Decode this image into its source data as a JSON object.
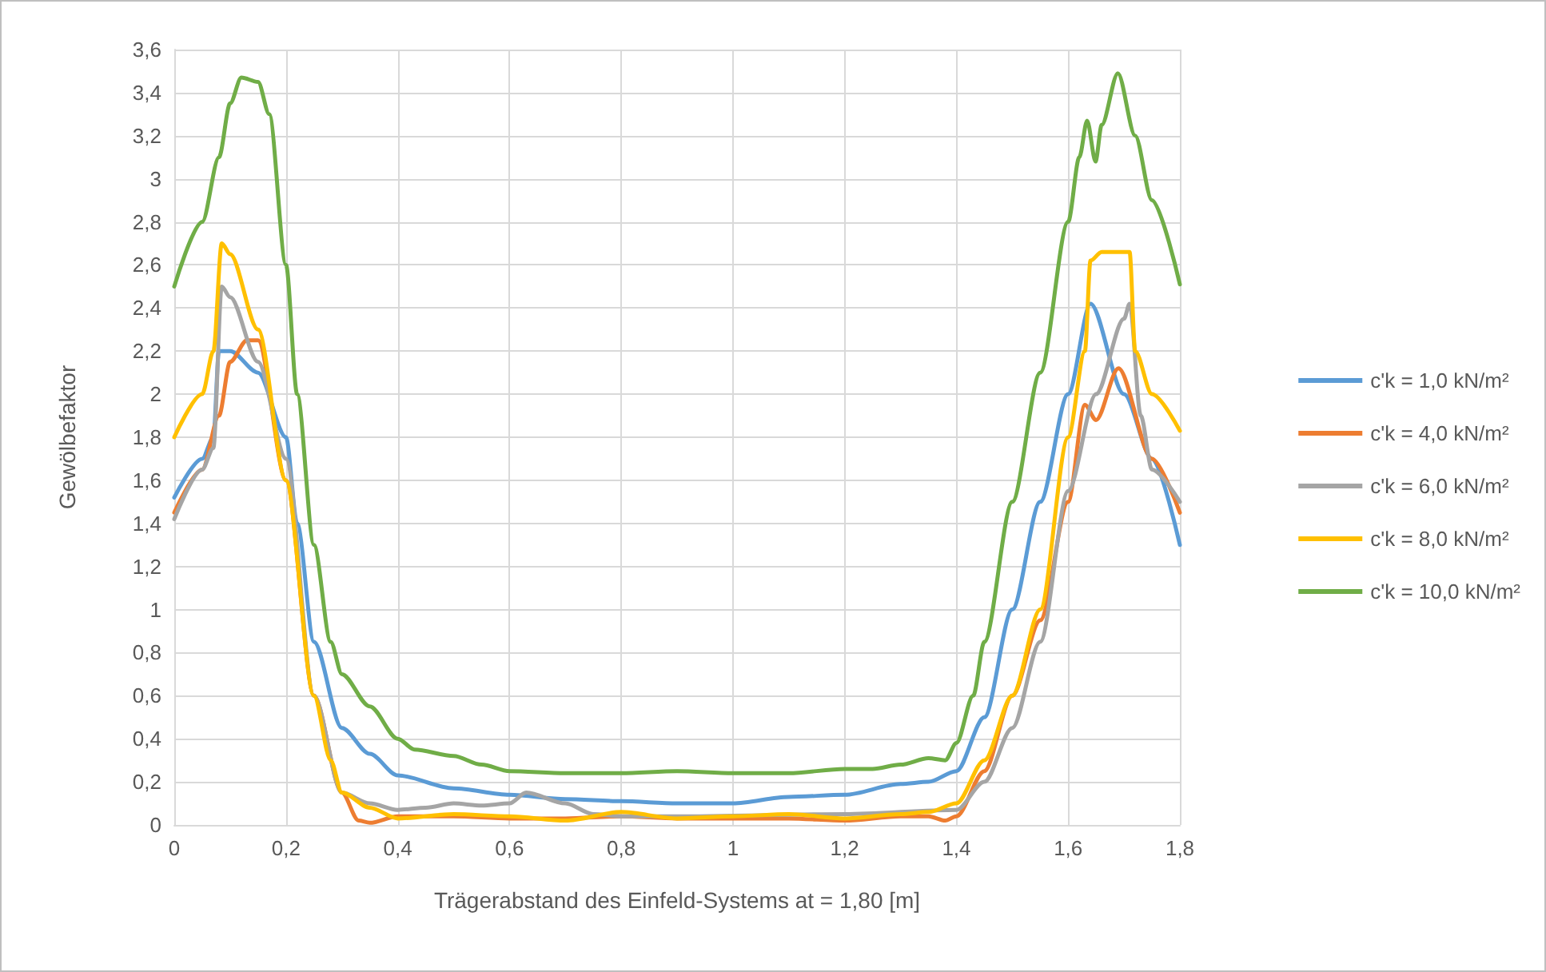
{
  "chart_data": {
    "type": "line",
    "xlabel": "Trägerabstand des Einfeld-Systems at = 1,80 [m]",
    "ylabel": "Gewölbefaktor",
    "xlim": [
      0,
      1.8
    ],
    "ylim": [
      0,
      3.6
    ],
    "xticks": [
      0,
      {
        "value": 0.2,
        "label": "0,2"
      },
      {
        "value": 0.4,
        "label": "0,4"
      },
      {
        "value": 0.6,
        "label": "0,6"
      },
      {
        "value": 0.8,
        "label": "0,8"
      },
      1,
      {
        "value": 1.2,
        "label": "1,2"
      },
      {
        "value": 1.4,
        "label": "1,4"
      },
      {
        "value": 1.6,
        "label": "1,6"
      },
      {
        "value": 1.8,
        "label": "1,8"
      }
    ],
    "yticks": [
      0,
      {
        "value": 0.2,
        "label": "0,2"
      },
      {
        "value": 0.4,
        "label": "0,4"
      },
      {
        "value": 0.6,
        "label": "0,6"
      },
      {
        "value": 0.8,
        "label": "0,8"
      },
      1,
      {
        "value": 1.2,
        "label": "1,2"
      },
      {
        "value": 1.4,
        "label": "1,4"
      },
      {
        "value": 1.6,
        "label": "1,6"
      },
      {
        "value": 1.8,
        "label": "1,8"
      },
      2,
      {
        "value": 2.2,
        "label": "2,2"
      },
      {
        "value": 2.4,
        "label": "2,4"
      },
      {
        "value": 2.6,
        "label": "2,6"
      },
      {
        "value": 2.8,
        "label": "2,8"
      },
      3,
      {
        "value": 3.2,
        "label": "3,2"
      },
      {
        "value": 3.4,
        "label": "3,4"
      },
      {
        "value": 3.6,
        "label": "3,6"
      }
    ],
    "grid": true,
    "legend": "right",
    "marker": "none",
    "line_style": "solid",
    "series": [
      {
        "name": "c'k = 1,0 kN/m²",
        "color": "#5b9bd5",
        "x": [
          0,
          0.05,
          0.07,
          0.08,
          0.1,
          0.15,
          0.2,
          0.22,
          0.25,
          0.3,
          0.35,
          0.4,
          0.5,
          0.6,
          0.7,
          0.8,
          0.9,
          1.0,
          1.1,
          1.2,
          1.3,
          1.35,
          1.4,
          1.45,
          1.5,
          1.55,
          1.6,
          1.64,
          1.7,
          1.75,
          1.8
        ],
        "values": [
          1.52,
          1.7,
          1.8,
          2.2,
          2.2,
          2.1,
          1.8,
          1.4,
          0.85,
          0.45,
          0.33,
          0.23,
          0.17,
          0.14,
          0.12,
          0.11,
          0.1,
          0.1,
          0.13,
          0.14,
          0.19,
          0.2,
          0.25,
          0.5,
          1.0,
          1.5,
          2.0,
          2.42,
          2.0,
          1.7,
          1.3
        ]
      },
      {
        "name": "c'k = 4,0 kN/m²",
        "color": "#ed7d31",
        "x": [
          0,
          0.05,
          0.08,
          0.1,
          0.13,
          0.15,
          0.2,
          0.25,
          0.3,
          0.33,
          0.35,
          0.4,
          0.5,
          0.6,
          0.7,
          0.8,
          0.9,
          1.0,
          1.1,
          1.2,
          1.3,
          1.35,
          1.38,
          1.4,
          1.45,
          1.5,
          1.55,
          1.6,
          1.63,
          1.65,
          1.69,
          1.75,
          1.8
        ],
        "values": [
          1.45,
          1.65,
          1.9,
          2.15,
          2.25,
          2.25,
          1.6,
          0.6,
          0.15,
          0.02,
          0.01,
          0.04,
          0.04,
          0.03,
          0.03,
          0.04,
          0.03,
          0.03,
          0.03,
          0.02,
          0.04,
          0.04,
          0.02,
          0.04,
          0.25,
          0.6,
          0.95,
          1.5,
          1.95,
          1.88,
          2.12,
          1.7,
          1.45
        ]
      },
      {
        "name": "c'k = 6,0 kN/m²",
        "color": "#a5a5a5",
        "x": [
          0,
          0.05,
          0.07,
          0.085,
          0.1,
          0.15,
          0.2,
          0.25,
          0.3,
          0.35,
          0.4,
          0.45,
          0.5,
          0.55,
          0.6,
          0.63,
          0.7,
          0.75,
          0.8,
          0.9,
          1.0,
          1.1,
          1.2,
          1.3,
          1.4,
          1.45,
          1.5,
          1.55,
          1.6,
          1.65,
          1.7,
          1.71,
          1.73,
          1.75,
          1.8
        ],
        "values": [
          1.42,
          1.65,
          1.75,
          2.5,
          2.45,
          2.15,
          1.7,
          0.6,
          0.15,
          0.1,
          0.07,
          0.08,
          0.1,
          0.09,
          0.1,
          0.15,
          0.1,
          0.05,
          0.04,
          0.04,
          null,
          null,
          0.05,
          null,
          0.07,
          0.2,
          0.45,
          0.85,
          1.55,
          2.0,
          2.35,
          2.42,
          1.9,
          1.65,
          1.5
        ]
      },
      {
        "name": "c'k = 8,0 kN/m²",
        "color": "#ffc000",
        "x": [
          0,
          0.05,
          0.07,
          0.085,
          0.1,
          0.15,
          0.2,
          0.25,
          0.28,
          0.3,
          0.35,
          0.4,
          0.5,
          0.6,
          0.7,
          0.8,
          0.9,
          1.0,
          1.1,
          1.2,
          1.3,
          1.35,
          1.4,
          1.45,
          1.5,
          1.55,
          1.6,
          1.63,
          1.64,
          1.66,
          1.71,
          1.72,
          1.75,
          1.8
        ],
        "values": [
          1.8,
          2.0,
          2.2,
          2.7,
          2.65,
          2.3,
          1.6,
          0.6,
          0.3,
          0.15,
          0.08,
          0.03,
          0.05,
          0.04,
          0.02,
          0.06,
          0.03,
          0.04,
          0.05,
          0.03,
          0.05,
          0.06,
          0.1,
          0.3,
          0.6,
          1.0,
          1.8,
          2.2,
          2.62,
          2.66,
          2.66,
          2.2,
          2.0,
          1.83
        ]
      },
      {
        "name": "c'k = 10,0 kN/m²",
        "color": "#70ad47",
        "x": [
          0,
          0.05,
          0.08,
          0.1,
          0.12,
          0.15,
          0.17,
          0.2,
          0.22,
          0.25,
          0.28,
          0.3,
          0.35,
          0.4,
          0.43,
          0.5,
          0.55,
          0.6,
          0.7,
          0.8,
          0.9,
          1.0,
          1.1,
          1.2,
          1.25,
          1.3,
          1.35,
          1.38,
          1.4,
          1.43,
          1.45,
          1.5,
          1.55,
          1.6,
          1.62,
          1.634,
          1.649,
          1.66,
          1.689,
          1.72,
          1.75,
          1.8
        ],
        "values": [
          2.5,
          2.8,
          3.1,
          3.35,
          3.47,
          3.45,
          3.3,
          2.6,
          2.0,
          1.3,
          0.85,
          0.7,
          0.55,
          0.4,
          0.35,
          0.32,
          0.28,
          0.25,
          0.24,
          0.24,
          0.25,
          0.24,
          0.24,
          0.26,
          0.26,
          0.28,
          0.31,
          0.3,
          0.38,
          0.6,
          0.85,
          1.5,
          2.1,
          2.8,
          3.1,
          3.27,
          3.08,
          3.25,
          3.49,
          3.2,
          2.9,
          2.51
        ]
      }
    ]
  }
}
